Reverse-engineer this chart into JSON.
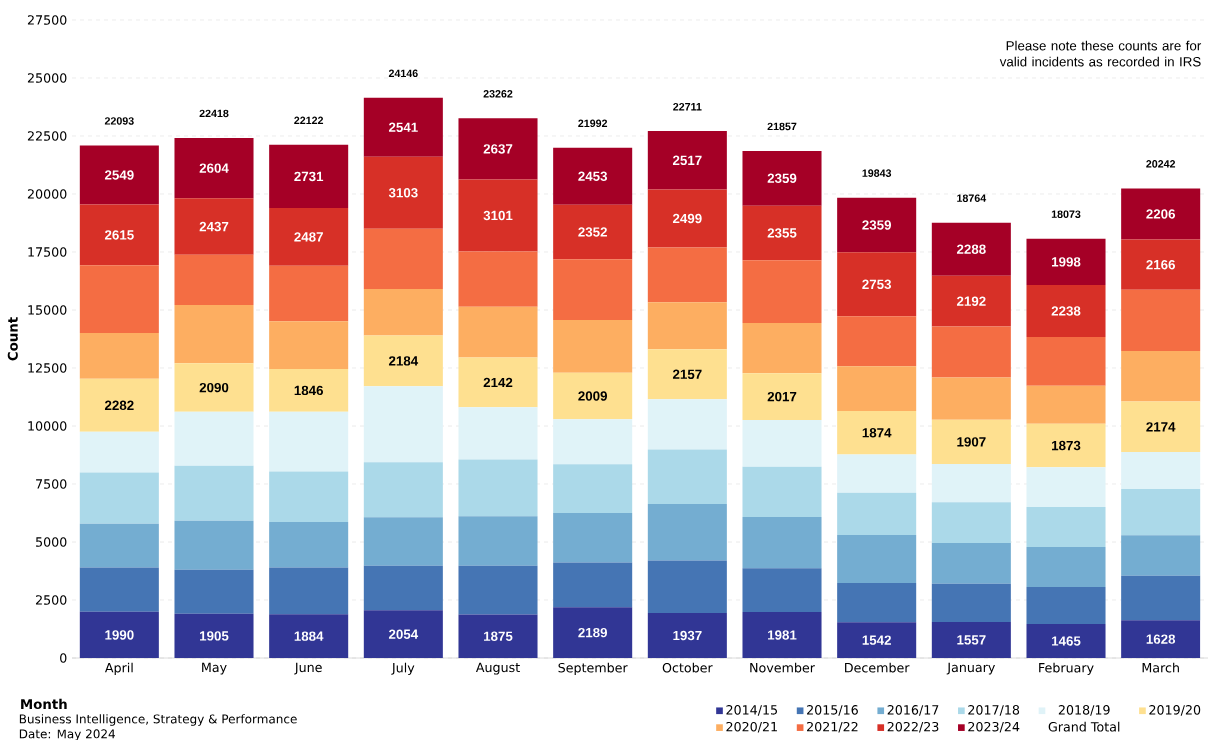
{
  "chart_data": {
    "type": "bar",
    "stacked": true,
    "ylabel": "Count",
    "xlabel": "Month",
    "categories": [
      "April",
      "May",
      "June",
      "July",
      "August",
      "September",
      "October",
      "November",
      "December",
      "January",
      "February",
      "March"
    ],
    "series": [
      {
        "name": "2014/15",
        "color": "#313695",
        "values": [
          1990,
          1905,
          1884,
          2054,
          1875,
          2189,
          1937,
          1981,
          1542,
          1557,
          1465,
          1628
        ],
        "value_labels": [
          "1990",
          "1905",
          "1884",
          "2054",
          "1875",
          "2189",
          "1937",
          "1981",
          "1542",
          "1557",
          "1465",
          "1628"
        ]
      },
      {
        "name": "2015/16",
        "color": "#4575b4",
        "values": [
          1910,
          1900,
          2015,
          1918,
          2100,
          1930,
          2270,
          1890,
          1690,
          1643,
          1599,
          1914
        ]
      },
      {
        "name": "2016/17",
        "color": "#74add1",
        "values": [
          1890,
          2115,
          1967,
          2097,
          2133,
          2130,
          2431,
          2207,
          2068,
          1758,
          1724,
          1754
        ]
      },
      {
        "name": "2017/18",
        "color": "#abd9e9",
        "values": [
          2210,
          2370,
          2170,
          2372,
          2444,
          2103,
          2349,
          2164,
          1819,
          1755,
          1724,
          1992
        ]
      },
      {
        "name": "2018/19",
        "color": "#e0f3f8",
        "values": [
          1750,
          2320,
          2575,
          3273,
          2254,
          1937,
          2164,
          2016,
          1652,
          1649,
          1708,
          1591
        ]
      },
      {
        "name": "2019/20",
        "color": "#fee090",
        "values": [
          2282,
          2090,
          1846,
          2184,
          2142,
          2009,
          2157,
          2017,
          1874,
          1907,
          1873,
          2174
        ],
        "value_labels": [
          "2282",
          "2090",
          "1846",
          "2184",
          "2142",
          "2009",
          "2157",
          "2017",
          "1874",
          "1907",
          "1873",
          "2174"
        ]
      },
      {
        "name": "2020/21",
        "color": "#fdae61",
        "values": [
          1980,
          2520,
          2053,
          2009,
          2194,
          2271,
          2021,
          2164,
          1927,
          1819,
          1647,
          2181
        ]
      },
      {
        "name": "2021/22",
        "color": "#f46d43",
        "values": [
          2917,
          2157,
          2395,
          2595,
          2382,
          2618,
          2366,
          2704,
          2159,
          2196,
          2097,
          2636
        ]
      },
      {
        "name": "2022/23",
        "color": "#d73027",
        "values": [
          2615,
          2437,
          2487,
          3103,
          3101,
          2352,
          2499,
          2355,
          2753,
          2192,
          2238,
          2166
        ],
        "value_labels": [
          "2615",
          "2437",
          "2487",
          "3103",
          "3101",
          "2352",
          "2499",
          "2355",
          "2753",
          "2192",
          "2238",
          "2166"
        ]
      },
      {
        "name": "2023/24",
        "color": "#a50026",
        "values": [
          2549,
          2604,
          2731,
          2541,
          2637,
          2453,
          2517,
          2359,
          2359,
          2288,
          1998,
          2206
        ],
        "value_labels": [
          "2549",
          "2604",
          "2731",
          "2541",
          "2637",
          "2453",
          "2517",
          "2359",
          "2359",
          "2288",
          "1998",
          "2206"
        ]
      }
    ],
    "totals": [
      "22093",
      "22418",
      "22122",
      "24146",
      "23262",
      "21992",
      "22711",
      "21857",
      "19843",
      "18764",
      "18073",
      "20242"
    ],
    "ylim": [
      0,
      27500
    ],
    "yticks": [
      0,
      2500,
      5000,
      7500,
      10000,
      12500,
      15000,
      17500,
      20000,
      22500,
      25000,
      27500
    ],
    "grid": "y",
    "legend": "bottom right",
    "annotations": [
      "Please note these counts are for valid incidents as recorded in IRS",
      "Grand Total",
      "Business Intelligence,  Strategy & Performance",
      "Date: May 2024"
    ]
  }
}
